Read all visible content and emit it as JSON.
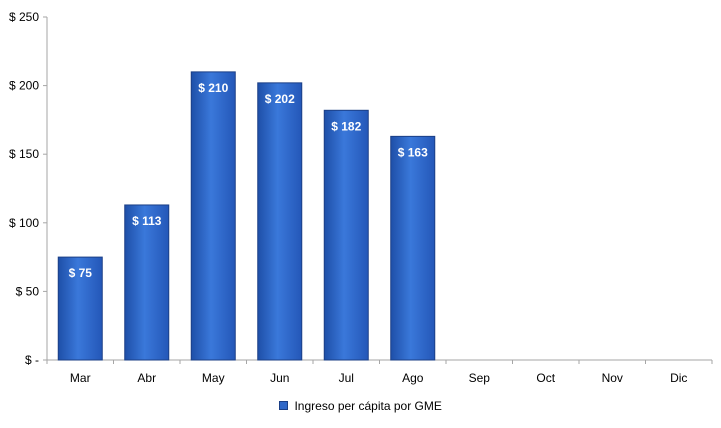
{
  "chart_data": {
    "type": "bar",
    "categories": [
      "Mar",
      "Abr",
      "May",
      "Jun",
      "Jul",
      "Ago",
      "Sep",
      "Oct",
      "Nov",
      "Dic"
    ],
    "series": [
      {
        "name": "Ingreso per cápita por GME",
        "values": [
          75,
          113,
          210,
          202,
          182,
          163,
          null,
          null,
          null,
          null
        ]
      }
    ],
    "data_labels": [
      "$ 75",
      "$ 113",
      "$ 210",
      "$ 202",
      "$ 182",
      "$ 163",
      "",
      "",
      "",
      ""
    ],
    "y_ticks": [
      "$ -",
      "$ 50",
      "$ 100",
      "$ 150",
      "$ 200",
      "$ 250"
    ],
    "ylim": [
      0,
      250
    ],
    "title": "",
    "xlabel": "",
    "ylabel": "",
    "legend_position": "bottom",
    "grid": false,
    "colors": {
      "bar": "#2F67C8",
      "bar_edge": "#1B3F86",
      "axis": "#A6A6A6"
    }
  }
}
